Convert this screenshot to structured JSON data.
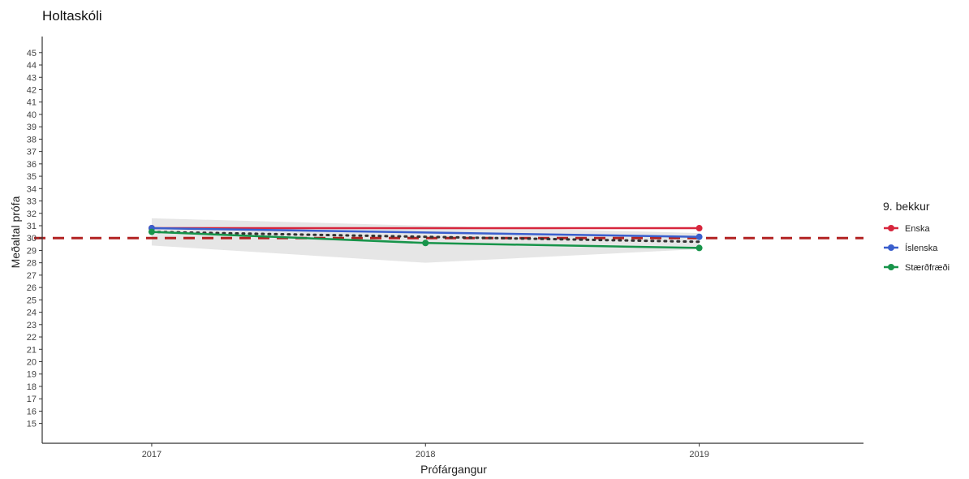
{
  "chart_data": {
    "type": "line",
    "title": "Holtaskóli",
    "xlabel": "Prófárgangur",
    "ylabel": "Meðaltal prófa",
    "x": [
      2017,
      2018,
      2019
    ],
    "x_tick_labels": [
      "2017",
      "2018",
      "2019"
    ],
    "xlim": [
      2016.6,
      2019.6
    ],
    "ylim": [
      13.4,
      46.3
    ],
    "y_ticks": [
      15,
      16,
      17,
      18,
      19,
      20,
      21,
      22,
      23,
      24,
      25,
      26,
      27,
      28,
      29,
      30,
      31,
      32,
      33,
      34,
      35,
      36,
      37,
      38,
      39,
      40,
      41,
      42,
      43,
      44,
      45
    ],
    "grid": false,
    "reference_line": {
      "y": 30,
      "color": "#b22222",
      "style": "dashed"
    },
    "trend_line": {
      "style": "dotted",
      "color": "#333333",
      "x": [
        2017,
        2019
      ],
      "y": [
        30.5,
        29.7
      ]
    },
    "confidence_band": {
      "color": "#e6e6e6",
      "x": [
        2017,
        2018,
        2019
      ],
      "lower": [
        29.4,
        28.0,
        29.1
      ],
      "upper": [
        31.6,
        31.0,
        30.4
      ]
    },
    "legend": {
      "title": "9. bekkur",
      "position": "right"
    },
    "series": [
      {
        "name": "Enska",
        "color": "#d7263d",
        "values": [
          30.8,
          null,
          30.8
        ]
      },
      {
        "name": "Íslenska",
        "color": "#3a5fcd",
        "values": [
          30.8,
          null,
          30.1
        ]
      },
      {
        "name": "Stærðfræði",
        "color": "#17944a",
        "values": [
          30.5,
          29.6,
          29.2
        ]
      }
    ]
  }
}
